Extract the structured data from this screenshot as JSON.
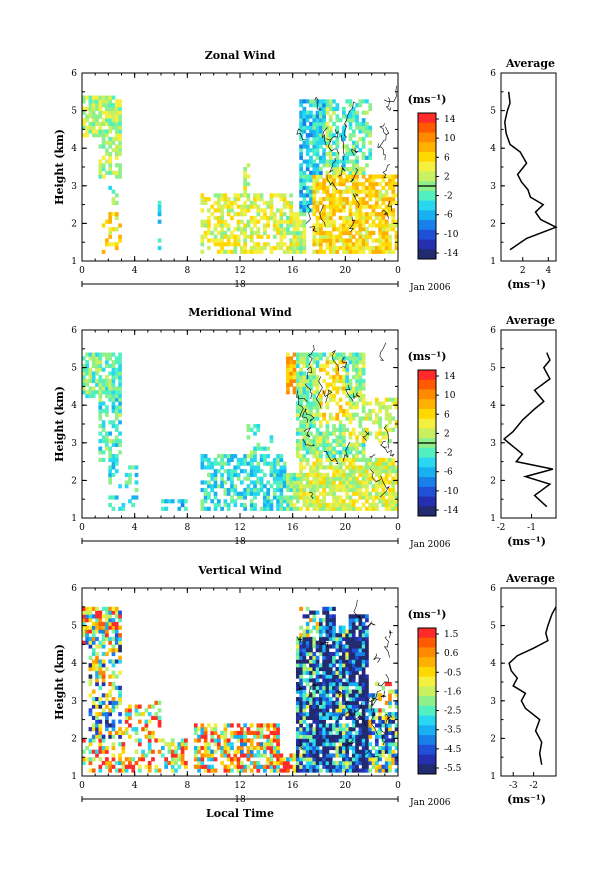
{
  "chart_data": [
    {
      "type": "heatmap",
      "title": "Zonal Wind",
      "ylabel": "Height (km)",
      "xticks": [
        "0",
        "4",
        "8",
        "12",
        "16",
        "20",
        "0"
      ],
      "yticks": [
        "1",
        "2",
        "3",
        "4",
        "5",
        "6"
      ],
      "xlim": [
        0,
        24
      ],
      "ylim": [
        1,
        6
      ],
      "date_label": "18",
      "month_label": "Jan 2006",
      "colorbar": {
        "units": "(ms⁻¹)",
        "min": -15,
        "max": 15,
        "zero_line": 0,
        "labels": [
          "14",
          "10",
          "6",
          "2",
          "-2",
          "-6",
          "-10",
          "-14"
        ],
        "colors": [
          "#ff2a2a",
          "#ff5a00",
          "#ff8a00",
          "#ffb000",
          "#ffd800",
          "#f5f040",
          "#c8f060",
          "#8ef08a",
          "#50f0c0",
          "#28d8f0",
          "#18b0f0",
          "#1880e8",
          "#2050d8",
          "#2430b0",
          "#222a70"
        ]
      },
      "regions": [
        {
          "t": [
            0.0,
            3.0
          ],
          "h": [
            4.3,
            5.4
          ],
          "v": 1.5,
          "d": 0.75
        },
        {
          "t": [
            1.3,
            3.0
          ],
          "h": [
            3.2,
            4.3
          ],
          "v": 1.5,
          "d": 0.55
        },
        {
          "t": [
            2.0,
            2.8
          ],
          "h": [
            2.3,
            3.0
          ],
          "v": 0.0,
          "d": 0.3
        },
        {
          "t": [
            1.6,
            3.0
          ],
          "h": [
            1.2,
            2.3
          ],
          "v": 5.0,
          "d": 0.4
        },
        {
          "t": [
            5.8,
            6.1
          ],
          "h": [
            1.2,
            2.6
          ],
          "v": -5.0,
          "d": 0.45
        },
        {
          "t": [
            9.0,
            16.0
          ],
          "h": [
            1.2,
            2.8
          ],
          "v": 3.5,
          "d": 0.6
        },
        {
          "t": [
            12.2,
            12.8
          ],
          "h": [
            2.5,
            3.6
          ],
          "v": 2.0,
          "d": 0.5
        },
        {
          "t": [
            15.0,
            17.0
          ],
          "h": [
            1.2,
            2.3
          ],
          "v": 2.0,
          "d": 0.85
        },
        {
          "t": [
            16.5,
            18.5
          ],
          "h": [
            2.3,
            5.3
          ],
          "v": -4.0,
          "d": 0.8
        },
        {
          "t": [
            18.5,
            21.5
          ],
          "h": [
            2.3,
            5.3
          ],
          "v": 1.0,
          "d": 0.8
        },
        {
          "t": [
            19.0,
            22.0
          ],
          "h": [
            3.5,
            5.3
          ],
          "v": -2.0,
          "d": 0.5
        },
        {
          "t": [
            17.5,
            24.0
          ],
          "h": [
            1.2,
            3.3
          ],
          "v": 5.5,
          "d": 0.75
        },
        {
          "t": [
            12.3,
            15.5
          ],
          "h": [
            5.0,
            5.0
          ],
          "v": 1.0,
          "d": 0.4
        }
      ],
      "profile": {
        "title": "Average",
        "xlabel": "(ms⁻¹)",
        "xticks": [
          "2",
          "4"
        ],
        "xlim": [
          0.3,
          4.6
        ],
        "height": [
          1.3,
          1.6,
          1.9,
          2.1,
          2.3,
          2.5,
          2.7,
          2.9,
          3.1,
          3.3,
          3.6,
          3.9,
          4.1,
          4.4,
          4.7,
          5.0,
          5.2,
          5.5
        ],
        "value": [
          1.0,
          2.3,
          4.6,
          3.4,
          3.0,
          3.6,
          2.6,
          2.4,
          1.9,
          1.6,
          2.3,
          1.8,
          1.0,
          0.7,
          0.6,
          0.8,
          1.0,
          0.9
        ]
      }
    },
    {
      "type": "heatmap",
      "title": "Meridional Wind",
      "ylabel": "Height (km)",
      "xticks": [
        "0",
        "4",
        "8",
        "12",
        "16",
        "20",
        "0"
      ],
      "yticks": [
        "1",
        "2",
        "3",
        "4",
        "5",
        "6"
      ],
      "xlim": [
        0,
        24
      ],
      "ylim": [
        1,
        6
      ],
      "date_label": "18",
      "month_label": "Jan 2006",
      "colorbar": {
        "units": "(ms⁻¹)",
        "min": -15,
        "max": 15,
        "zero_line": 0,
        "labels": [
          "14",
          "10",
          "6",
          "2",
          "-2",
          "-6",
          "-10",
          "-14"
        ],
        "colors": [
          "#ff2a2a",
          "#ff5a00",
          "#ff8a00",
          "#ffb000",
          "#ffd800",
          "#f5f040",
          "#c8f060",
          "#8ef08a",
          "#50f0c0",
          "#28d8f0",
          "#18b0f0",
          "#1880e8",
          "#2050d8",
          "#2430b0",
          "#222a70"
        ]
      },
      "regions": [
        {
          "t": [
            0.0,
            3.0
          ],
          "h": [
            4.2,
            5.4
          ],
          "v": -1.0,
          "d": 0.8
        },
        {
          "t": [
            1.3,
            3.0
          ],
          "h": [
            2.5,
            4.2
          ],
          "v": -2.0,
          "d": 0.6
        },
        {
          "t": [
            2.0,
            4.3
          ],
          "h": [
            1.2,
            2.5
          ],
          "v": -3.5,
          "d": 0.35
        },
        {
          "t": [
            6.0,
            8.0
          ],
          "h": [
            1.2,
            1.5
          ],
          "v": -4.0,
          "d": 0.4
        },
        {
          "t": [
            9.0,
            15.5
          ],
          "h": [
            1.2,
            2.7
          ],
          "v": -3.5,
          "d": 0.6
        },
        {
          "t": [
            12.5,
            14.5
          ],
          "h": [
            2.6,
            3.5
          ],
          "v": -1.0,
          "d": 0.4
        },
        {
          "t": [
            15.5,
            17.0
          ],
          "h": [
            1.2,
            2.2
          ],
          "v": 0.0,
          "d": 0.9
        },
        {
          "t": [
            15.5,
            16.2
          ],
          "h": [
            4.3,
            5.4
          ],
          "v": 7.0,
          "d": 0.8
        },
        {
          "t": [
            16.2,
            21.5
          ],
          "h": [
            2.5,
            5.4
          ],
          "v": 0.0,
          "d": 0.8
        },
        {
          "t": [
            16.5,
            24.0
          ],
          "h": [
            1.2,
            2.6
          ],
          "v": 3.0,
          "d": 0.8
        },
        {
          "t": [
            20.0,
            24.0
          ],
          "h": [
            3.0,
            4.2
          ],
          "v": 2.5,
          "d": 0.5
        },
        {
          "t": [
            18.0,
            20.0
          ],
          "h": [
            3.5,
            5.2
          ],
          "v": 5.0,
          "d": 0.5
        }
      ],
      "profile": {
        "title": "Average",
        "xlabel": "(ms⁻¹)",
        "xticks": [
          "-2",
          "-1"
        ],
        "xlim": [
          -2.0,
          -0.2
        ],
        "height": [
          1.3,
          1.6,
          1.9,
          2.1,
          2.3,
          2.5,
          2.7,
          2.9,
          3.1,
          3.3,
          3.6,
          3.9,
          4.1,
          4.4,
          4.7,
          5.0,
          5.2,
          5.4
        ],
        "value": [
          -0.5,
          -0.9,
          -0.4,
          -1.2,
          -0.3,
          -1.5,
          -1.3,
          -1.6,
          -1.9,
          -1.6,
          -1.3,
          -0.9,
          -0.6,
          -0.9,
          -0.4,
          -0.6,
          -0.4,
          -0.5
        ]
      }
    },
    {
      "type": "heatmap",
      "title": "Vertical Wind",
      "ylabel": "Height (km)",
      "xlabel": "Local Time",
      "xticks": [
        "0",
        "4",
        "8",
        "12",
        "16",
        "20",
        "0"
      ],
      "yticks": [
        "1",
        "2",
        "3",
        "4",
        "5",
        "6"
      ],
      "xlim": [
        0,
        24
      ],
      "ylim": [
        1,
        6
      ],
      "date_label": "18",
      "month_label": "Jan 2006",
      "colorbar": {
        "units": "(ms⁻¹)",
        "min": -6.0,
        "max": 2.0,
        "zero_line": null,
        "labels": [
          "1.5",
          "0.6",
          "-0.5",
          "-1.6",
          "-2.5",
          "-3.5",
          "-4.5",
          "-5.5"
        ],
        "colors": [
          "#ff2a2a",
          "#ff5a00",
          "#ff8a00",
          "#ffb000",
          "#ffd800",
          "#f5f040",
          "#c8f060",
          "#8ef08a",
          "#50f0c0",
          "#28d8f0",
          "#18b0f0",
          "#1880e8",
          "#2050d8",
          "#2430b0",
          "#222a70"
        ]
      },
      "regions": [
        {
          "t": [
            0.0,
            3.0
          ],
          "h": [
            4.5,
            5.5
          ],
          "v": -1.2,
          "d": 0.85
        },
        {
          "t": [
            0.5,
            3.0
          ],
          "h": [
            2.0,
            4.5
          ],
          "v": -2.5,
          "d": 0.55
        },
        {
          "t": [
            0.0,
            8.0
          ],
          "h": [
            1.1,
            2.0
          ],
          "v": -0.2,
          "d": 0.55
        },
        {
          "t": [
            3.0,
            6.0
          ],
          "h": [
            1.2,
            3.0
          ],
          "v": 0.2,
          "d": 0.4
        },
        {
          "t": [
            8.5,
            15.0
          ],
          "h": [
            1.1,
            2.4
          ],
          "v": -0.5,
          "d": 0.7
        },
        {
          "t": [
            15.0,
            16.5
          ],
          "h": [
            1.1,
            1.6
          ],
          "v": -0.8,
          "d": 0.8
        },
        {
          "t": [
            16.3,
            17.8
          ],
          "h": [
            1.1,
            4.7
          ],
          "v": -4.5,
          "d": 0.9
        },
        {
          "t": [
            17.8,
            19.2
          ],
          "h": [
            1.1,
            5.5
          ],
          "v": -5.5,
          "d": 0.9
        },
        {
          "t": [
            19.2,
            20.2
          ],
          "h": [
            1.1,
            5.0
          ],
          "v": -4.0,
          "d": 0.85
        },
        {
          "t": [
            20.2,
            21.8
          ],
          "h": [
            1.1,
            5.3
          ],
          "v": -5.6,
          "d": 0.9
        },
        {
          "t": [
            21.8,
            24.0
          ],
          "h": [
            1.1,
            2.7
          ],
          "v": -3.2,
          "d": 0.75
        },
        {
          "t": [
            21.8,
            24.0
          ],
          "h": [
            2.7,
            3.5
          ],
          "v": -1.0,
          "d": 0.35
        },
        {
          "t": [
            16.5,
            18.5
          ],
          "h": [
            4.7,
            5.5
          ],
          "v": -3.0,
          "d": 0.5
        }
      ],
      "profile": {
        "title": "Average",
        "xlabel": "(ms⁻¹)",
        "xticks": [
          "-3",
          "-2"
        ],
        "xlim": [
          -3.6,
          -0.9
        ],
        "height": [
          1.3,
          1.6,
          1.9,
          2.2,
          2.5,
          2.8,
          3.0,
          3.2,
          3.4,
          3.6,
          3.8,
          4.0,
          4.2,
          4.4,
          4.6,
          4.8,
          5.0,
          5.3,
          5.5
        ],
        "value": [
          -1.6,
          -1.7,
          -1.6,
          -1.9,
          -1.7,
          -2.4,
          -2.6,
          -2.4,
          -3.0,
          -2.8,
          -3.1,
          -3.2,
          -2.8,
          -2.0,
          -1.3,
          -1.4,
          -1.3,
          -1.1,
          -0.9
        ]
      }
    }
  ]
}
